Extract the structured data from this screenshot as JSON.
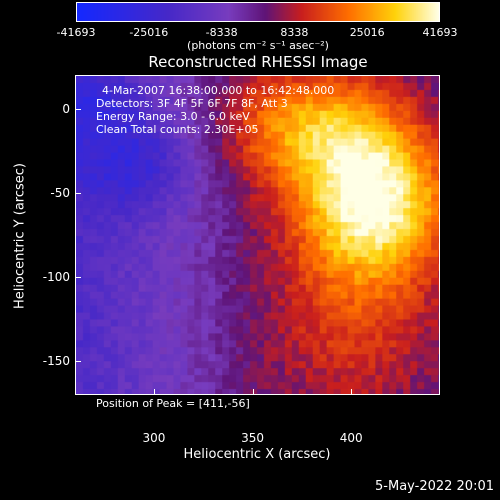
{
  "chart_data": {
    "type": "heatmap",
    "title": "Reconstructed RHESSI Image",
    "xlabel": "Heliocentric X (arcsec)",
    "ylabel": "Heliocentric Y (arcsec)",
    "xlim": [
      260,
      445
    ],
    "ylim": [
      -170,
      20
    ],
    "x_ticks": [
      300,
      350,
      400
    ],
    "y_ticks": [
      0,
      -50,
      -100,
      -150
    ],
    "colorbar": {
      "colormap": "fire (blue-negative)",
      "range": [
        -41693,
        41693
      ],
      "tick_labels": [
        "-41693",
        "-25016",
        "-8338",
        "8338",
        "25016",
        "41693"
      ],
      "units": "(photons cm⁻² s⁻¹ asec⁻²)"
    },
    "annotations": {
      "time_range": "4-Mar-2007 16:38:00.000 to 16:42:48.000",
      "detectors": "Detectors: 3F 4F 5F 6F 7F 8F, Att 3",
      "energy": "Energy Range: 3.0 - 6.0 keV",
      "clean": "Clean     Total counts: 2.30E+05"
    },
    "peak": {
      "label": "Position of Peak = [411,-56]",
      "x": 411,
      "y": -56
    },
    "footer_date": "5-May-2022 20:01"
  }
}
